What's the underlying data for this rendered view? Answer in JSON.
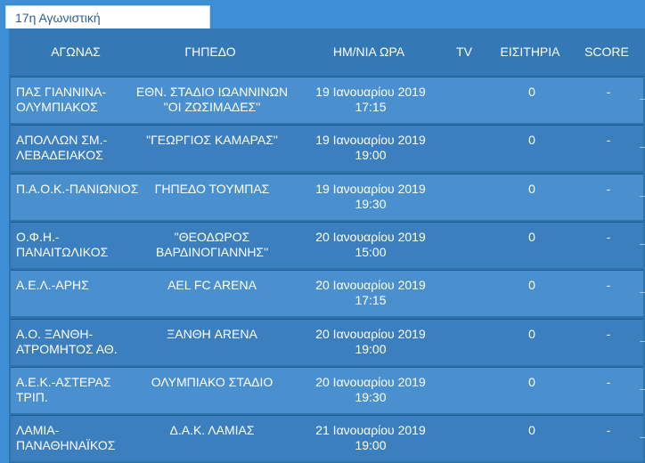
{
  "tab": {
    "label": "17η Αγωνιστική"
  },
  "headers": {
    "match": "ΑΓΩΝΑΣ",
    "venue": "ΓΗΠΕΔΟ",
    "datetime": "ΗΜ/ΝΙΑ ΩΡΑ",
    "tv": "TV",
    "tickets": "ΕΙΣΙΤΗΡΙΑ",
    "score": "SCORE"
  },
  "rows": [
    {
      "match": "ΠΑΣ ΓΙΑΝΝΙΝΑ-ΟΛΥΜΠΙΑΚΟΣ",
      "venue": "ΕΘΝ. ΣΤΑΔΙΟ ΙΩΑΝΝΙΝΩΝ \"ΟΙ ΖΩΣΙΜΑΔΕΣ\"",
      "date": "19 Ιανουαρίου 2019",
      "time": "17:15",
      "tv": "",
      "tickets": "0",
      "score": "-"
    },
    {
      "match": "ΑΠΟΛΛΩΝ ΣΜ.-ΛΕΒΑΔΕΙΑΚΟΣ",
      "venue": "\"ΓΕΩΡΓΙΟΣ ΚΑΜΑΡΑΣ\"",
      "date": "19 Ιανουαρίου 2019",
      "time": "19:00",
      "tv": "",
      "tickets": "0",
      "score": "-"
    },
    {
      "match": "Π.Α.Ο.Κ.-ΠΑΝΙΩΝΙΟΣ",
      "venue": "ΓΗΠΕΔΟ ΤΟΥΜΠΑΣ",
      "date": "19 Ιανουαρίου 2019",
      "time": "19:30",
      "tv": "",
      "tickets": "0",
      "score": "-"
    },
    {
      "match": "Ο.Φ.Η.-ΠΑΝΑΙΤΩΛΙΚΟΣ",
      "venue": "\"ΘΕΟΔΩΡΟΣ ΒΑΡΔΙΝΟΓΙΑΝΝΗΣ\"",
      "date": "20 Ιανουαρίου 2019",
      "time": "15:00",
      "tv": "",
      "tickets": "0",
      "score": "-"
    },
    {
      "match": "Α.Ε.Λ.-ΑΡΗΣ",
      "venue": "AEL FC ARENA",
      "date": "20 Ιανουαρίου 2019",
      "time": "17:15",
      "tv": "",
      "tickets": "0",
      "score": "-"
    },
    {
      "match": "Α.Ο. ΞΑΝΘΗ-ΑΤΡΟΜΗΤΟΣ ΑΘ.",
      "venue": "ΞΑΝΘΗ ARENA",
      "date": "20 Ιανουαρίου 2019",
      "time": "19:00",
      "tv": "",
      "tickets": "0",
      "score": "-"
    },
    {
      "match": "Α.Ε.Κ.-ΑΣΤΕΡΑΣ ΤΡΙΠ.",
      "venue": "ΟΛΥΜΠΙΑΚΟ ΣΤΑΔΙΟ",
      "date": "20 Ιανουαρίου 2019",
      "time": "19:30",
      "tv": "",
      "tickets": "0",
      "score": "-"
    },
    {
      "match": "ΛΑΜΙΑ-ΠΑΝΑΘΗΝΑΪΚΟΣ",
      "venue": "Δ.Α.Κ. ΛΑΜΙΑΣ",
      "date": "21 Ιανουαρίου 2019",
      "time": "19:00",
      "tv": "",
      "tickets": "0",
      "score": "-"
    }
  ]
}
